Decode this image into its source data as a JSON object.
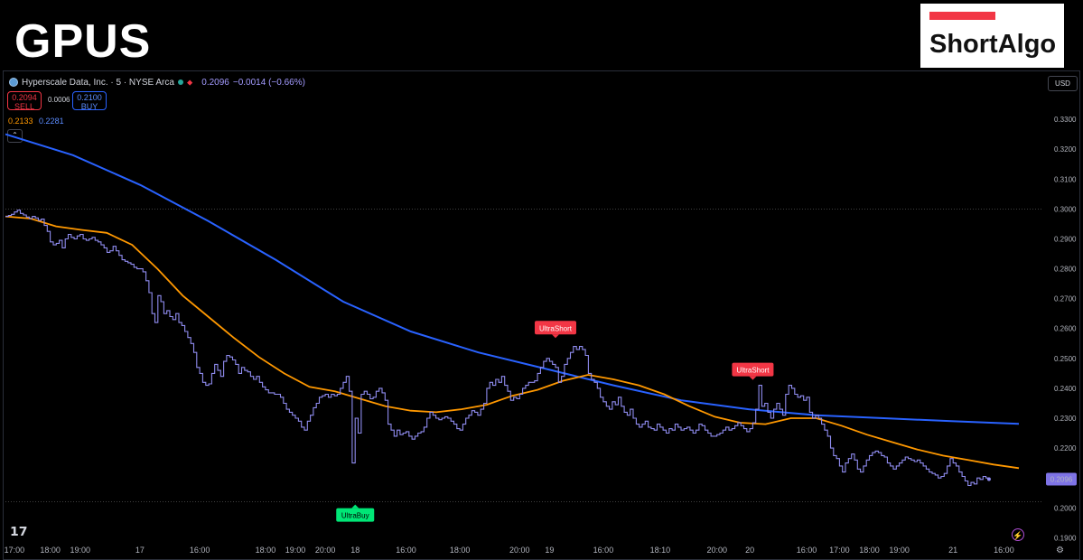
{
  "ticker": "GPUS",
  "brand": {
    "name": "ShortAlgo",
    "accent": "#f23645"
  },
  "header": {
    "symbol": "Hyperscale Data, Inc. · 5 · NYSE Arca",
    "price": "0.2096",
    "change": "−0.0014 (−0.66%)",
    "logo_icon": "company-logo-icon",
    "market_status_icon": "market-open-dot-icon",
    "alert_icon": "alert-arrows-icon"
  },
  "trade": {
    "sell_price": "0.2094",
    "sell_label": "SELL",
    "spread": "0.0006",
    "buy_price": "0.2100",
    "buy_label": "BUY"
  },
  "ma_legend": {
    "orange": "0.2133",
    "blue": "0.2281"
  },
  "currency": "USD",
  "colors": {
    "price_line": "#8f8cf0",
    "ma_fast": "#ff9800",
    "ma_slow": "#2962ff",
    "short_signal": "#f23645",
    "buy_signal": "#00e676"
  },
  "chart_data": {
    "type": "line",
    "ylim": [
      0.1886,
      0.3397
    ],
    "y_ticks": [
      "0.3300",
      "0.3200",
      "0.3100",
      "0.3000",
      "0.2900",
      "0.2800",
      "0.2700",
      "0.2600",
      "0.2500",
      "0.2400",
      "0.2300",
      "0.2200",
      "0.2000",
      "0.1900"
    ],
    "x_ticks": [
      "17:00",
      "18:00",
      "19:00",
      "17",
      "16:00",
      "18:00",
      "19:00",
      "20:00",
      "18",
      "16:00",
      "18:00",
      "20:00",
      "19",
      "16:00",
      "18:10",
      "20:00",
      "20",
      "16:00",
      "17:00",
      "18:00",
      "19:00",
      "21",
      "16:00"
    ],
    "x_tick_index": [
      3,
      15,
      25,
      45,
      65,
      87,
      97,
      107,
      117,
      134,
      152,
      172,
      182,
      200,
      219,
      238,
      249,
      268,
      279,
      289,
      299,
      317,
      334
    ],
    "x_count": 340,
    "last_price_label": "0.2096",
    "series": [
      {
        "kind": "price",
        "values": [
          0.2975,
          0.2978,
          0.2982,
          0.299,
          0.2996,
          0.2985,
          0.298,
          0.2973,
          0.2968,
          0.2975,
          0.297,
          0.2962,
          0.2966,
          0.2945,
          0.2925,
          0.289,
          0.288,
          0.2885,
          0.2895,
          0.287,
          0.29,
          0.2915,
          0.2905,
          0.29,
          0.291,
          0.2915,
          0.29,
          0.2895,
          0.29,
          0.2905,
          0.2895,
          0.289,
          0.288,
          0.287,
          0.2855,
          0.286,
          0.2875,
          0.286,
          0.2845,
          0.283,
          0.2825,
          0.282,
          0.2815,
          0.2805,
          0.28,
          0.28,
          0.279,
          0.276,
          0.272,
          0.265,
          0.262,
          0.271,
          0.269,
          0.265,
          0.266,
          0.264,
          0.263,
          0.265,
          0.262,
          0.261,
          0.259,
          0.257,
          0.255,
          0.252,
          0.247,
          0.245,
          0.242,
          0.241,
          0.2415,
          0.245,
          0.248,
          0.246,
          0.244,
          0.249,
          0.251,
          0.2505,
          0.2495,
          0.248,
          0.245,
          0.247,
          0.246,
          0.2455,
          0.244,
          0.243,
          0.244,
          0.242,
          0.2405,
          0.2395,
          0.2385,
          0.2385,
          0.238,
          0.238,
          0.237,
          0.235,
          0.233,
          0.232,
          0.231,
          0.23,
          0.229,
          0.227,
          0.226,
          0.229,
          0.231,
          0.2335,
          0.235,
          0.237,
          0.2375,
          0.238,
          0.237,
          0.238,
          0.2375,
          0.238,
          0.24,
          0.242,
          0.244,
          0.239,
          0.215,
          0.23,
          0.225,
          0.238,
          0.239,
          0.238,
          0.2365,
          0.237,
          0.239,
          0.24,
          0.2385,
          0.236,
          0.228,
          0.226,
          0.224,
          0.226,
          0.2245,
          0.225,
          0.2255,
          0.224,
          0.223,
          0.224,
          0.225,
          0.2255,
          0.227,
          0.23,
          0.232,
          0.231,
          0.23,
          0.2295,
          0.23,
          0.2305,
          0.23,
          0.229,
          0.228,
          0.2265,
          0.226,
          0.228,
          0.23,
          0.231,
          0.2325,
          0.232,
          0.231,
          0.233,
          0.235,
          0.24,
          0.242,
          0.241,
          0.243,
          0.242,
          0.244,
          0.241,
          0.239,
          0.236,
          0.237,
          0.2365,
          0.238,
          0.24,
          0.241,
          0.242,
          0.242,
          0.2425,
          0.245,
          0.247,
          0.249,
          0.25,
          0.249,
          0.248,
          0.247,
          0.242,
          0.244,
          0.248,
          0.25,
          0.252,
          0.254,
          0.253,
          0.254,
          0.253,
          0.251,
          0.245,
          0.243,
          0.242,
          0.24,
          0.237,
          0.2355,
          0.234,
          0.233,
          0.2355,
          0.2345,
          0.237,
          0.234,
          0.232,
          0.231,
          0.233,
          0.23,
          0.228,
          0.227,
          0.228,
          0.229,
          0.227,
          0.2265,
          0.226,
          0.228,
          0.227,
          0.226,
          0.225,
          0.2265,
          0.226,
          0.228,
          0.227,
          0.226,
          0.2265,
          0.227,
          0.226,
          0.225,
          0.226,
          0.228,
          0.2275,
          0.226,
          0.225,
          0.224,
          0.224,
          0.2245,
          0.225,
          0.226,
          0.227,
          0.226,
          0.2265,
          0.2275,
          0.2285,
          0.2275,
          0.2265,
          0.2255,
          0.2265,
          0.2285,
          0.233,
          0.241,
          0.234,
          0.235,
          0.232,
          0.23,
          0.233,
          0.235,
          0.233,
          0.231,
          0.238,
          0.241,
          0.24,
          0.238,
          0.237,
          0.2375,
          0.236,
          0.237,
          0.232,
          0.23,
          0.231,
          0.23,
          0.228,
          0.226,
          0.224,
          0.22,
          0.2175,
          0.2165,
          0.214,
          0.212,
          0.215,
          0.2165,
          0.218,
          0.216,
          0.213,
          0.212,
          0.214,
          0.216,
          0.2175,
          0.2185,
          0.219,
          0.2185,
          0.2175,
          0.217,
          0.215,
          0.214,
          0.213,
          0.214,
          0.215,
          0.216,
          0.217,
          0.2165,
          0.216,
          0.2155,
          0.216,
          0.215,
          0.214,
          0.213,
          0.212,
          0.2115,
          0.211,
          0.21,
          0.2105,
          0.2115,
          0.214,
          0.2165,
          0.215,
          0.214,
          0.212,
          0.2105,
          0.209,
          0.2075,
          0.2085,
          0.208,
          0.21,
          0.2095,
          0.2105,
          0.21,
          0.2096
        ]
      },
      {
        "kind": "ma_fast",
        "points": [
          [
            0,
            0.2975
          ],
          [
            10,
            0.2968
          ],
          [
            20,
            0.2942
          ],
          [
            30,
            0.293
          ],
          [
            40,
            0.292
          ],
          [
            50,
            0.288
          ],
          [
            60,
            0.28
          ],
          [
            70,
            0.271
          ],
          [
            80,
            0.264
          ],
          [
            90,
            0.257
          ],
          [
            100,
            0.2505
          ],
          [
            110,
            0.245
          ],
          [
            120,
            0.2405
          ],
          [
            130,
            0.239
          ],
          [
            140,
            0.2365
          ],
          [
            150,
            0.234
          ],
          [
            160,
            0.2325
          ],
          [
            170,
            0.232
          ],
          [
            180,
            0.233
          ],
          [
            190,
            0.2345
          ],
          [
            200,
            0.2375
          ],
          [
            210,
            0.2395
          ],
          [
            220,
            0.2425
          ],
          [
            230,
            0.2445
          ],
          [
            240,
            0.243
          ],
          [
            250,
            0.241
          ],
          [
            260,
            0.238
          ],
          [
            270,
            0.234
          ],
          [
            280,
            0.2305
          ],
          [
            290,
            0.2285
          ],
          [
            300,
            0.228
          ],
          [
            310,
            0.23
          ],
          [
            320,
            0.23
          ],
          [
            330,
            0.2275
          ],
          [
            340,
            0.2245
          ],
          [
            350,
            0.222
          ],
          [
            360,
            0.2195
          ],
          [
            370,
            0.2175
          ],
          [
            380,
            0.216
          ],
          [
            390,
            0.2145
          ],
          [
            400,
            0.2133
          ]
        ],
        "x_scale": 340,
        "x_of": 400
      },
      {
        "kind": "ma_slow",
        "points": [
          [
            0,
            0.325
          ],
          [
            20,
            0.318
          ],
          [
            40,
            0.308
          ],
          [
            60,
            0.296
          ],
          [
            80,
            0.283
          ],
          [
            100,
            0.269
          ],
          [
            120,
            0.259
          ],
          [
            140,
            0.252
          ],
          [
            160,
            0.2465
          ],
          [
            180,
            0.241
          ],
          [
            200,
            0.236
          ],
          [
            220,
            0.233
          ],
          [
            240,
            0.231
          ],
          [
            260,
            0.23
          ],
          [
            280,
            0.229
          ],
          [
            300,
            0.2281
          ]
        ],
        "x_of": 300
      }
    ],
    "annotations": [
      {
        "label": "UltraShort",
        "kind": "short",
        "at": 184,
        "price": 0.255
      },
      {
        "label": "UltraShort",
        "kind": "short",
        "at": 250,
        "price": 0.241
      },
      {
        "label": "UltraBuy",
        "kind": "buy",
        "at": 117,
        "price": 0.215
      }
    ],
    "horizontal_lines": [
      0.3,
      0.202
    ]
  }
}
